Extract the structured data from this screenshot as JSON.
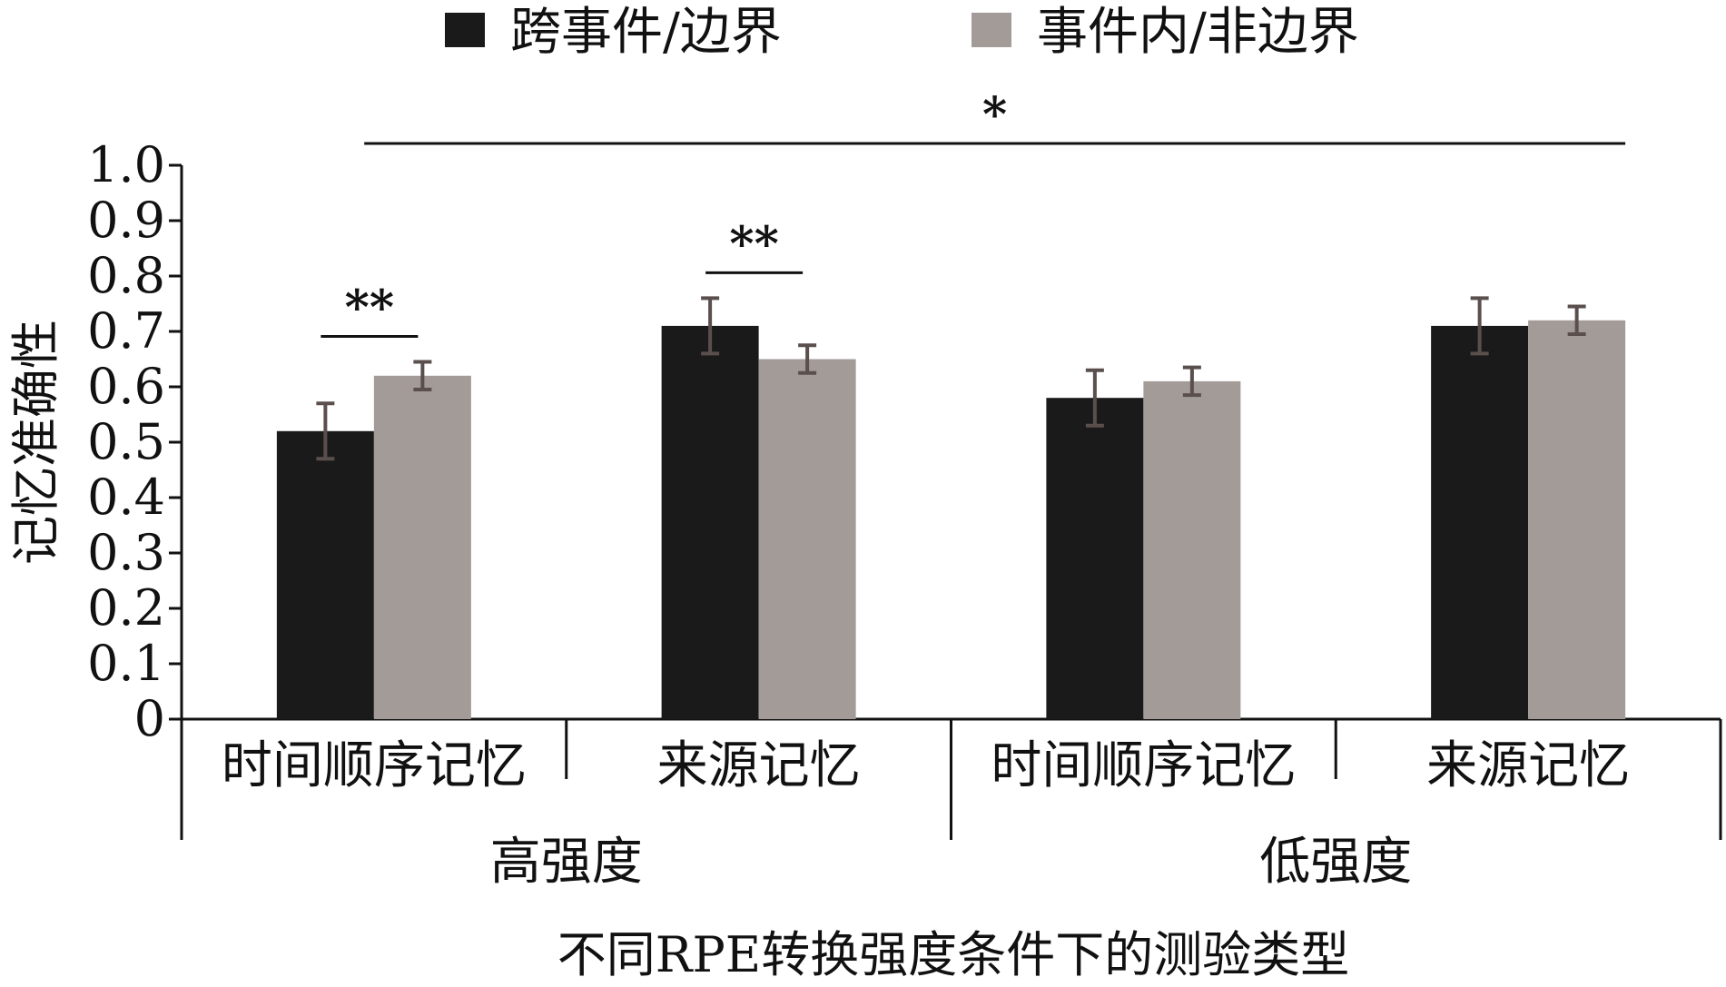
{
  "chart_data": {
    "type": "bar",
    "ylabel": "记忆准确性",
    "xlabel": "不同RPE转换强度条件下的测验类型",
    "ylim": [
      0,
      1.0
    ],
    "yticks": [
      "0",
      "0.1",
      "0.2",
      "0.3",
      "0.4",
      "0.5",
      "0.6",
      "0.7",
      "0.8",
      "0.9",
      "1.0"
    ],
    "groups": [
      {
        "label": "高强度",
        "categories": [
          "时间顺序记忆",
          "来源记忆"
        ]
      },
      {
        "label": "低强度",
        "categories": [
          "时间顺序记忆",
          "来源记忆"
        ]
      }
    ],
    "categories": [
      "时间顺序记忆",
      "来源记忆",
      "时间顺序记忆",
      "来源记忆"
    ],
    "series": [
      {
        "name": "跨事件/边界",
        "color": "#1a1a1a",
        "values": [
          0.52,
          0.71,
          0.58,
          0.71
        ],
        "errors": [
          0.05,
          0.05,
          0.05,
          0.05
        ]
      },
      {
        "name": "事件内/非边界",
        "color": "#a39b98",
        "values": [
          0.62,
          0.65,
          0.61,
          0.72
        ],
        "errors": [
          0.025,
          0.025,
          0.025,
          0.025
        ]
      }
    ],
    "error_bar_color": "#5a4f4c",
    "legend_position": "top",
    "grid": false,
    "significance": [
      {
        "label": "**",
        "from": {
          "category": 0,
          "series": 0
        },
        "to": {
          "category": 0,
          "series": 1
        }
      },
      {
        "label": "**",
        "from": {
          "category": 1,
          "series": 0
        },
        "to": {
          "category": 1,
          "series": 1
        }
      },
      {
        "label": "*",
        "from": {
          "category": 0,
          "series": 1
        },
        "to": {
          "category": 3,
          "series": 1
        }
      }
    ]
  }
}
